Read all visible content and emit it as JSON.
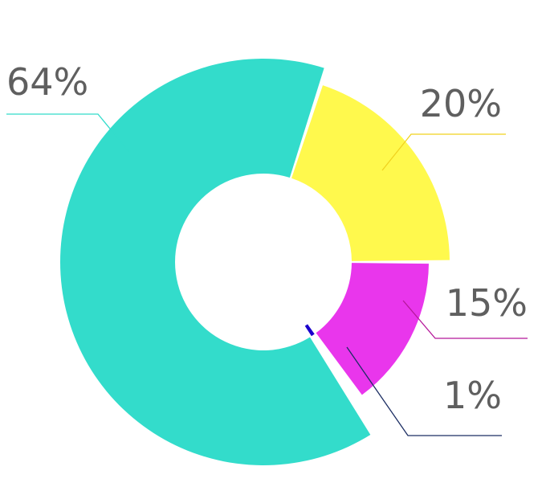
{
  "chart_data": {
    "type": "pie",
    "variant": "donut",
    "title": "",
    "slices": [
      {
        "label": "64%",
        "value": 64,
        "color": "#33DCCB"
      },
      {
        "label": "20%",
        "value": 20,
        "color": "#FFF94D"
      },
      {
        "label": "15%",
        "value": 15,
        "color": "#E936EC"
      },
      {
        "label": "1%",
        "value": 1,
        "color": "#1A00CC"
      }
    ],
    "leader_colors": [
      "#33DCCB",
      "#F0D21F",
      "#B5189A",
      "#1C2E63"
    ],
    "legend": false
  }
}
